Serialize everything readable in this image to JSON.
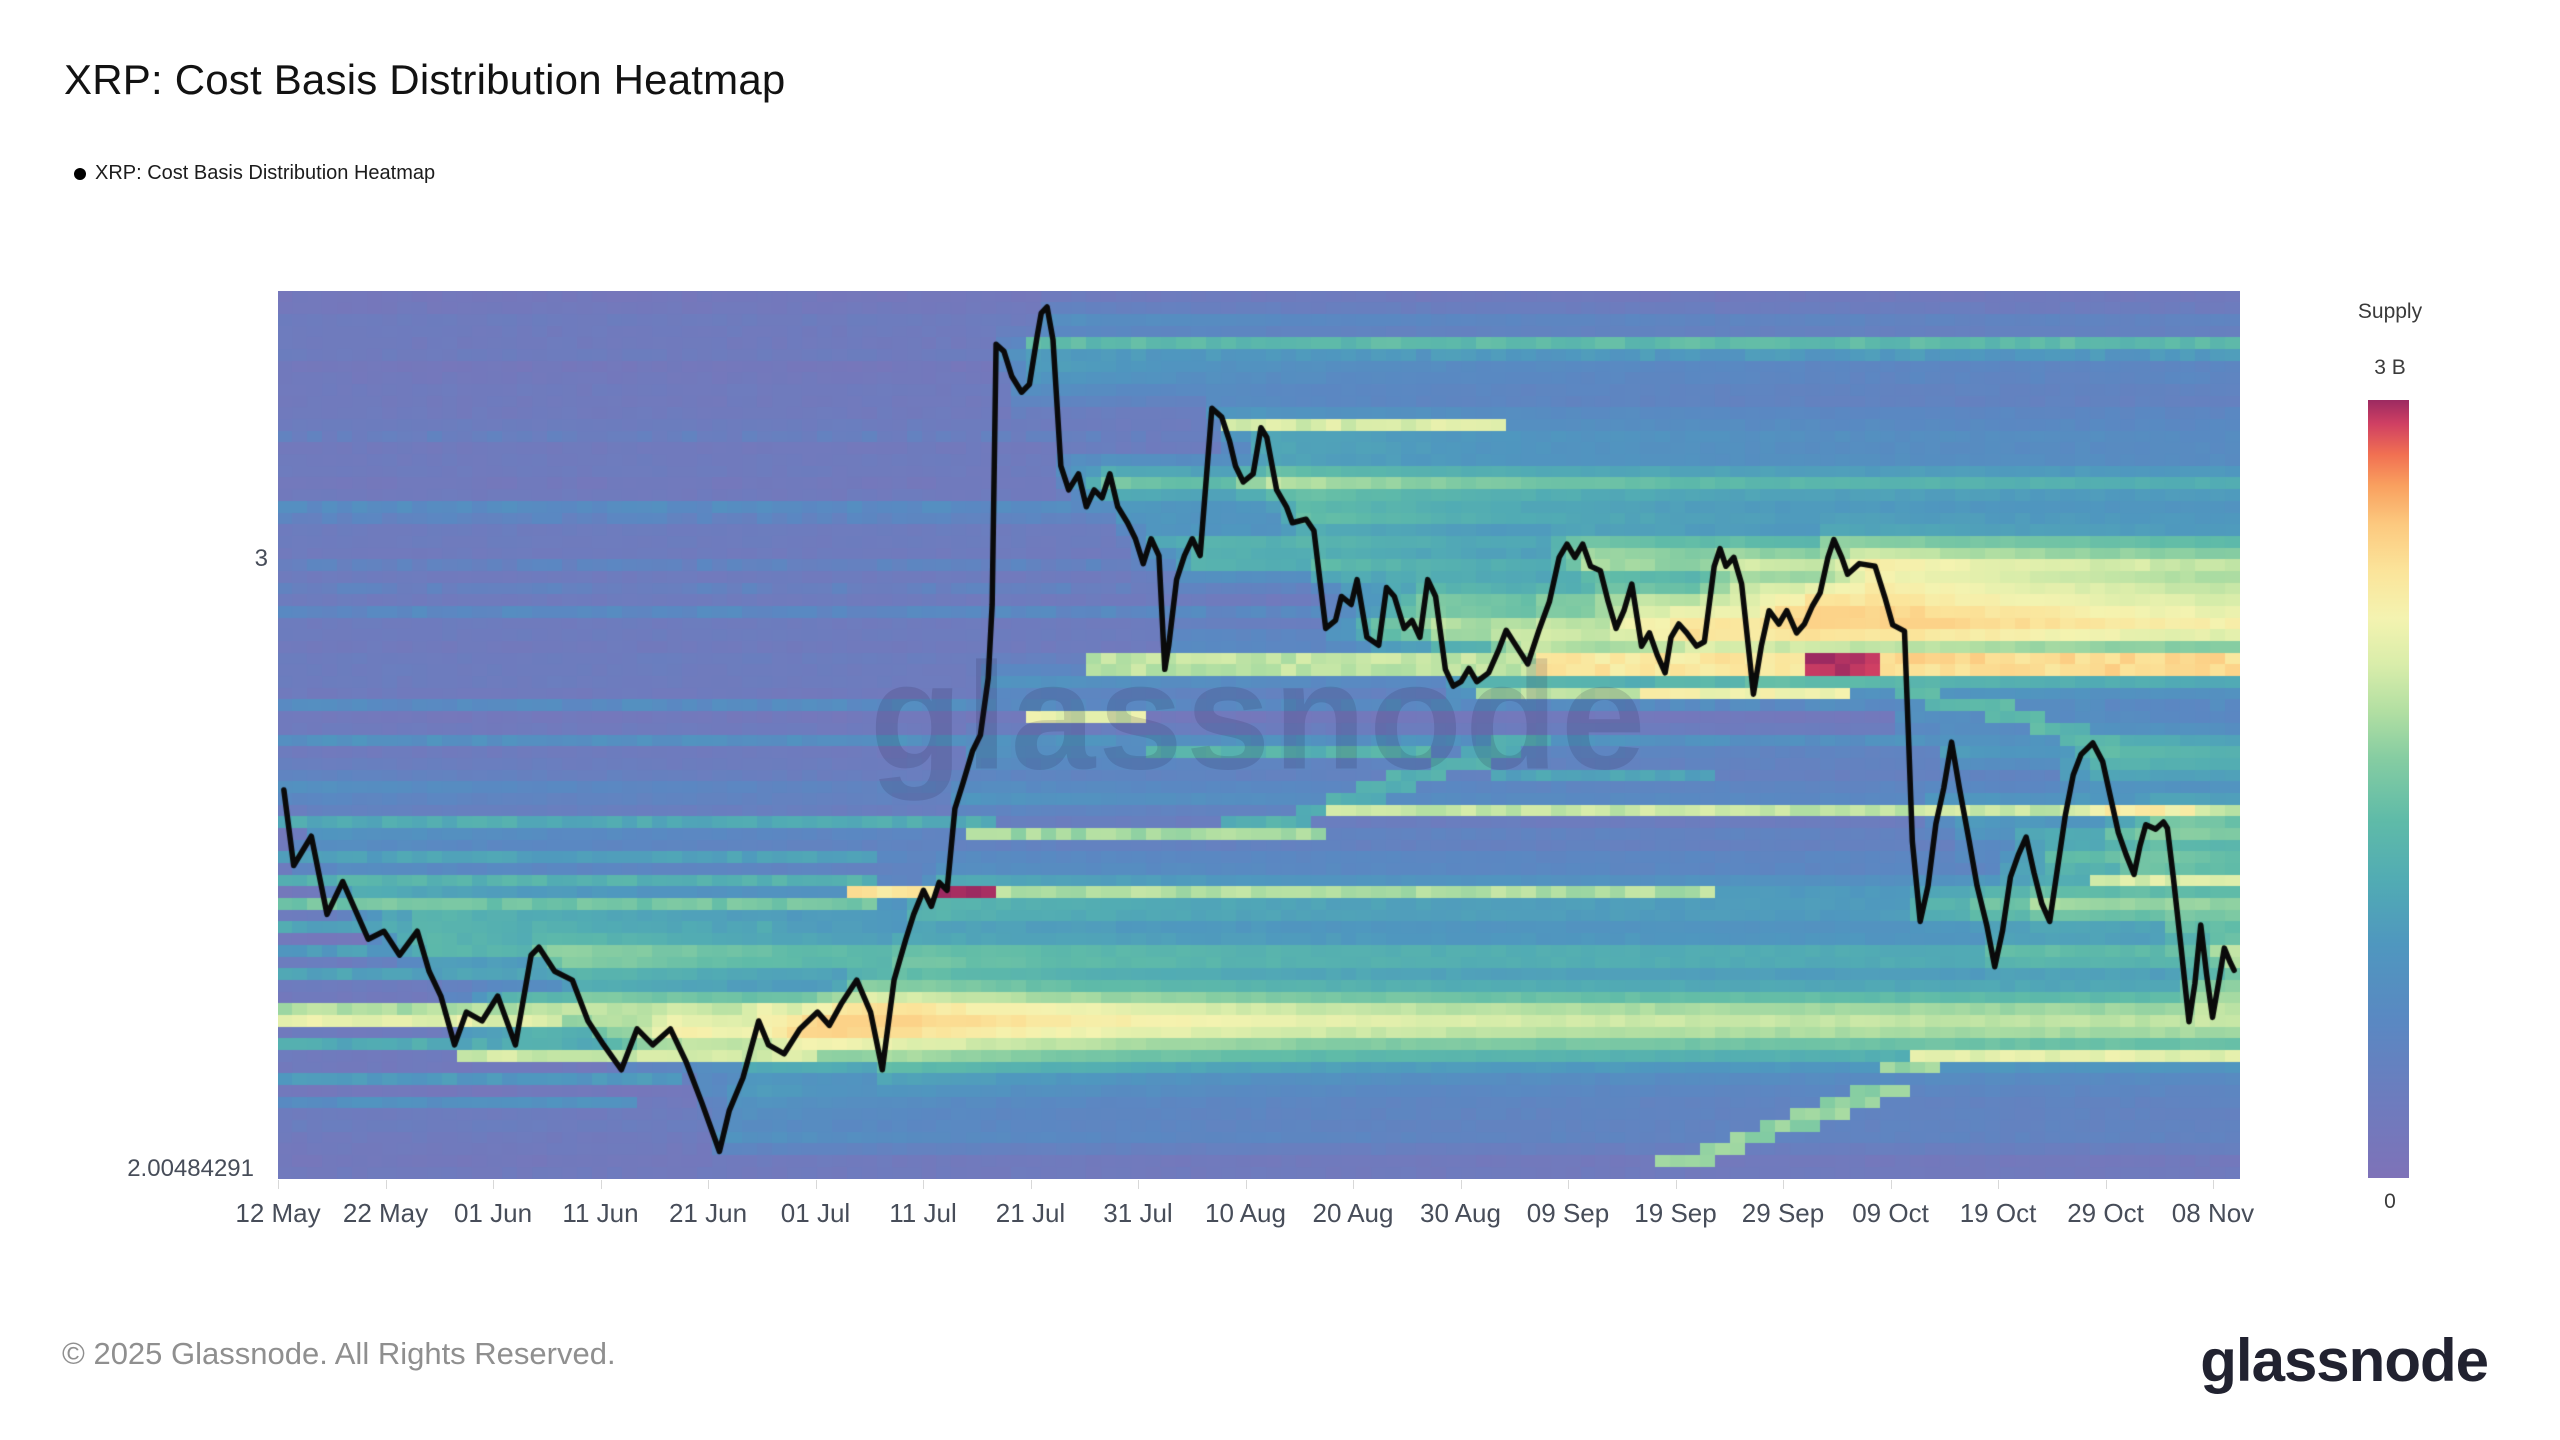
{
  "header": {
    "title": "XRP: Cost Basis Distribution Heatmap",
    "legend_label": "XRP: Cost Basis Distribution Heatmap"
  },
  "watermark": "glassnode",
  "footer": {
    "copyright": "© 2025 Glassnode. All Rights Reserved.",
    "brand": "glassnode"
  },
  "colorbar": {
    "title": "Supply",
    "max_label": "3 B",
    "min_label": "0"
  },
  "axes": {
    "y_labels": [
      {
        "text": "3",
        "yf": 0.3
      },
      {
        "text": "2.00484291",
        "yf": 0.986
      }
    ],
    "x_labels": [
      "12 May",
      "22 May",
      "01 Jun",
      "11 Jun",
      "21 Jun",
      "01 Jul",
      "11 Jul",
      "21 Jul",
      "31 Jul",
      "10 Aug",
      "20 Aug",
      "30 Aug",
      "09 Sep",
      "19 Sep",
      "29 Sep",
      "09 Oct",
      "19 Oct",
      "29 Oct",
      "08 Nov"
    ]
  },
  "chart_data": {
    "type": "heatmap",
    "title": "XRP: Cost Basis Distribution Heatmap",
    "x_range": [
      "12 May",
      "08 Nov"
    ],
    "x_tick_spacing_days": 10,
    "y_axis": {
      "labeled_price": 3,
      "labeled_price_frac": 0.3,
      "bottom_label": "2.00484291"
    },
    "supply_scale": {
      "min_label": "0",
      "max_label": "3 B"
    },
    "legend": {
      "position": "top-left",
      "entries": [
        "XRP: Cost Basis Distribution Heatmap"
      ]
    },
    "grid": {
      "cols": 131,
      "rows": 76
    },
    "colormap": [
      [
        0.0,
        "#7e72b8"
      ],
      [
        0.1,
        "#6d7cbe"
      ],
      [
        0.2,
        "#5a88c2"
      ],
      [
        0.3,
        "#4f97bf"
      ],
      [
        0.38,
        "#51abb4"
      ],
      [
        0.46,
        "#5fbba8"
      ],
      [
        0.54,
        "#86cda2"
      ],
      [
        0.6,
        "#b2dfa2"
      ],
      [
        0.66,
        "#d9edaa"
      ],
      [
        0.72,
        "#f4f3b0"
      ],
      [
        0.78,
        "#fbe49a"
      ],
      [
        0.84,
        "#fcc97f"
      ],
      [
        0.89,
        "#f9a05f"
      ],
      [
        0.93,
        "#f17052"
      ],
      [
        0.97,
        "#cf3f63"
      ],
      [
        1.0,
        "#9c2a61"
      ]
    ],
    "price_line_color": "#0a0a0a",
    "base": {
      "level": 0.045,
      "row_jitter": 0.05,
      "cell_jitter": 0.028,
      "seed": 7
    },
    "deposit": {
      "amps": [
        0.03,
        0.09,
        0.15,
        0.09,
        0.03
      ],
      "persist_floor": 0.38,
      "decay_cols": 22
    },
    "price_line": [
      [
        0.003,
        0.562
      ],
      [
        0.008,
        0.647
      ],
      [
        0.017,
        0.614
      ],
      [
        0.025,
        0.702
      ],
      [
        0.033,
        0.665
      ],
      [
        0.046,
        0.73
      ],
      [
        0.054,
        0.721
      ],
      [
        0.062,
        0.748
      ],
      [
        0.071,
        0.721
      ],
      [
        0.077,
        0.766
      ],
      [
        0.083,
        0.794
      ],
      [
        0.09,
        0.849
      ],
      [
        0.096,
        0.812
      ],
      [
        0.104,
        0.822
      ],
      [
        0.112,
        0.794
      ],
      [
        0.121,
        0.849
      ],
      [
        0.129,
        0.748
      ],
      [
        0.133,
        0.739
      ],
      [
        0.141,
        0.766
      ],
      [
        0.15,
        0.776
      ],
      [
        0.158,
        0.822
      ],
      [
        0.166,
        0.849
      ],
      [
        0.175,
        0.877
      ],
      [
        0.183,
        0.831
      ],
      [
        0.191,
        0.849
      ],
      [
        0.2,
        0.831
      ],
      [
        0.208,
        0.868
      ],
      [
        0.216,
        0.914
      ],
      [
        0.225,
        0.969
      ],
      [
        0.23,
        0.923
      ],
      [
        0.237,
        0.886
      ],
      [
        0.245,
        0.822
      ],
      [
        0.25,
        0.849
      ],
      [
        0.258,
        0.859
      ],
      [
        0.266,
        0.831
      ],
      [
        0.275,
        0.812
      ],
      [
        0.281,
        0.827
      ],
      [
        0.287,
        0.803
      ],
      [
        0.295,
        0.776
      ],
      [
        0.302,
        0.812
      ],
      [
        0.308,
        0.877
      ],
      [
        0.314,
        0.776
      ],
      [
        0.32,
        0.73
      ],
      [
        0.324,
        0.702
      ],
      [
        0.329,
        0.675
      ],
      [
        0.333,
        0.693
      ],
      [
        0.337,
        0.666
      ],
      [
        0.341,
        0.675
      ],
      [
        0.345,
        0.583
      ],
      [
        0.349,
        0.555
      ],
      [
        0.354,
        0.518
      ],
      [
        0.358,
        0.5
      ],
      [
        0.362,
        0.436
      ],
      [
        0.364,
        0.353
      ],
      [
        0.366,
        0.06
      ],
      [
        0.37,
        0.068
      ],
      [
        0.374,
        0.096
      ],
      [
        0.379,
        0.114
      ],
      [
        0.383,
        0.105
      ],
      [
        0.387,
        0.05
      ],
      [
        0.389,
        0.025
      ],
      [
        0.392,
        0.018
      ],
      [
        0.395,
        0.055
      ],
      [
        0.399,
        0.197
      ],
      [
        0.403,
        0.224
      ],
      [
        0.408,
        0.206
      ],
      [
        0.412,
        0.243
      ],
      [
        0.416,
        0.224
      ],
      [
        0.42,
        0.233
      ],
      [
        0.424,
        0.206
      ],
      [
        0.428,
        0.243
      ],
      [
        0.433,
        0.261
      ],
      [
        0.437,
        0.279
      ],
      [
        0.441,
        0.307
      ],
      [
        0.445,
        0.279
      ],
      [
        0.449,
        0.298
      ],
      [
        0.452,
        0.426
      ],
      [
        0.454,
        0.399
      ],
      [
        0.458,
        0.325
      ],
      [
        0.462,
        0.298
      ],
      [
        0.466,
        0.279
      ],
      [
        0.47,
        0.298
      ],
      [
        0.476,
        0.132
      ],
      [
        0.481,
        0.142
      ],
      [
        0.485,
        0.169
      ],
      [
        0.488,
        0.197
      ],
      [
        0.492,
        0.215
      ],
      [
        0.497,
        0.206
      ],
      [
        0.501,
        0.154
      ],
      [
        0.504,
        0.165
      ],
      [
        0.509,
        0.224
      ],
      [
        0.514,
        0.243
      ],
      [
        0.517,
        0.261
      ],
      [
        0.524,
        0.257
      ],
      [
        0.528,
        0.27
      ],
      [
        0.534,
        0.38
      ],
      [
        0.539,
        0.371
      ],
      [
        0.542,
        0.344
      ],
      [
        0.547,
        0.353
      ],
      [
        0.55,
        0.325
      ],
      [
        0.555,
        0.39
      ],
      [
        0.561,
        0.399
      ],
      [
        0.565,
        0.334
      ],
      [
        0.569,
        0.344
      ],
      [
        0.574,
        0.38
      ],
      [
        0.578,
        0.371
      ],
      [
        0.582,
        0.39
      ],
      [
        0.586,
        0.325
      ],
      [
        0.59,
        0.344
      ],
      [
        0.595,
        0.426
      ],
      [
        0.599,
        0.445
      ],
      [
        0.603,
        0.44
      ],
      [
        0.607,
        0.425
      ],
      [
        0.611,
        0.44
      ],
      [
        0.617,
        0.43
      ],
      [
        0.622,
        0.405
      ],
      [
        0.626,
        0.382
      ],
      [
        0.63,
        0.396
      ],
      [
        0.637,
        0.42
      ],
      [
        0.643,
        0.38
      ],
      [
        0.648,
        0.35
      ],
      [
        0.653,
        0.3
      ],
      [
        0.657,
        0.285
      ],
      [
        0.661,
        0.3
      ],
      [
        0.665,
        0.285
      ],
      [
        0.669,
        0.31
      ],
      [
        0.674,
        0.315
      ],
      [
        0.678,
        0.35
      ],
      [
        0.682,
        0.38
      ],
      [
        0.686,
        0.36
      ],
      [
        0.69,
        0.33
      ],
      [
        0.695,
        0.4
      ],
      [
        0.699,
        0.385
      ],
      [
        0.703,
        0.41
      ],
      [
        0.707,
        0.43
      ],
      [
        0.71,
        0.39
      ],
      [
        0.714,
        0.375
      ],
      [
        0.718,
        0.385
      ],
      [
        0.723,
        0.4
      ],
      [
        0.727,
        0.395
      ],
      [
        0.732,
        0.31
      ],
      [
        0.735,
        0.29
      ],
      [
        0.738,
        0.31
      ],
      [
        0.742,
        0.3
      ],
      [
        0.746,
        0.33
      ],
      [
        0.752,
        0.454
      ],
      [
        0.756,
        0.4
      ],
      [
        0.76,
        0.36
      ],
      [
        0.765,
        0.375
      ],
      [
        0.769,
        0.36
      ],
      [
        0.774,
        0.385
      ],
      [
        0.778,
        0.375
      ],
      [
        0.782,
        0.355
      ],
      [
        0.786,
        0.34
      ],
      [
        0.79,
        0.3
      ],
      [
        0.793,
        0.28
      ],
      [
        0.797,
        0.3
      ],
      [
        0.8,
        0.319
      ],
      [
        0.806,
        0.307
      ],
      [
        0.814,
        0.31
      ],
      [
        0.819,
        0.345
      ],
      [
        0.823,
        0.376
      ],
      [
        0.829,
        0.383
      ],
      [
        0.831,
        0.5
      ],
      [
        0.833,
        0.62
      ],
      [
        0.837,
        0.71
      ],
      [
        0.841,
        0.67
      ],
      [
        0.845,
        0.6
      ],
      [
        0.849,
        0.56
      ],
      [
        0.853,
        0.508
      ],
      [
        0.857,
        0.56
      ],
      [
        0.862,
        0.62
      ],
      [
        0.866,
        0.67
      ],
      [
        0.871,
        0.715
      ],
      [
        0.875,
        0.761
      ],
      [
        0.879,
        0.72
      ],
      [
        0.883,
        0.66
      ],
      [
        0.887,
        0.635
      ],
      [
        0.891,
        0.615
      ],
      [
        0.895,
        0.655
      ],
      [
        0.899,
        0.69
      ],
      [
        0.903,
        0.71
      ],
      [
        0.907,
        0.65
      ],
      [
        0.911,
        0.59
      ],
      [
        0.915,
        0.545
      ],
      [
        0.919,
        0.522
      ],
      [
        0.925,
        0.509
      ],
      [
        0.93,
        0.53
      ],
      [
        0.934,
        0.57
      ],
      [
        0.938,
        0.61
      ],
      [
        0.942,
        0.635
      ],
      [
        0.946,
        0.657
      ],
      [
        0.949,
        0.625
      ],
      [
        0.952,
        0.601
      ],
      [
        0.957,
        0.606
      ],
      [
        0.961,
        0.598
      ],
      [
        0.963,
        0.605
      ],
      [
        0.966,
        0.66
      ],
      [
        0.97,
        0.74
      ],
      [
        0.974,
        0.823
      ],
      [
        0.977,
        0.78
      ],
      [
        0.98,
        0.714
      ],
      [
        0.983,
        0.77
      ],
      [
        0.986,
        0.818
      ],
      [
        0.989,
        0.78
      ],
      [
        0.992,
        0.74
      ],
      [
        0.995,
        0.756
      ],
      [
        0.997,
        0.765
      ]
    ],
    "bands": [
      {
        "y": 0.047,
        "x0": 0.392,
        "x1": 1.0,
        "v": 0.45,
        "h": 1
      },
      {
        "y": 0.066,
        "x0": 0.39,
        "x1": 1.0,
        "v": 0.3,
        "h": 1
      },
      {
        "y": 0.095,
        "x0": 0.47,
        "x1": 1.0,
        "v": 0.17,
        "h": 1
      },
      {
        "y": 0.15,
        "x0": 0.488,
        "x1": 0.617,
        "v": 0.66,
        "h": 1
      },
      {
        "y": 0.165,
        "x0": 0.0,
        "x1": 1.0,
        "v": 0.13,
        "h": 1
      },
      {
        "y": 0.241,
        "x0": 0.0,
        "x1": 1.0,
        "v": 0.22,
        "h": 1
      },
      {
        "y": 0.258,
        "x0": 0.0,
        "x1": 1.0,
        "v": 0.17,
        "h": 1
      },
      {
        "y": 0.3,
        "x0": 0.0,
        "x1": 1.0,
        "v": 0.16,
        "h": 1
      },
      {
        "y": 0.33,
        "x0": 0.0,
        "x1": 1.0,
        "v": 0.14,
        "h": 1
      },
      {
        "y": 0.313,
        "x0": 0.63,
        "x1": 0.812,
        "v": 0.38,
        "h": 1
      },
      {
        "y": 0.313,
        "x0": 0.812,
        "x1": 0.953,
        "v": 0.64,
        "h": 1
      },
      {
        "y": 0.355,
        "x0": 0.0,
        "x1": 1.0,
        "v": 0.2,
        "h": 1
      },
      {
        "y": 0.412,
        "x0": 0.423,
        "x1": 0.648,
        "v": 0.62,
        "h": 2
      },
      {
        "y": 0.412,
        "x0": 0.648,
        "x1": 0.787,
        "v": 0.76,
        "h": 2
      },
      {
        "y": 0.412,
        "x0": 0.787,
        "x1": 0.81,
        "v": 0.985,
        "h": 2
      },
      {
        "y": 0.412,
        "x0": 0.81,
        "x1": 1.0,
        "v": 0.8,
        "h": 2
      },
      {
        "y": 0.447,
        "x0": 0.62,
        "x1": 0.705,
        "v": 0.6,
        "h": 1
      },
      {
        "y": 0.447,
        "x0": 0.705,
        "x1": 0.8,
        "v": 0.72,
        "h": 1
      },
      {
        "y": 0.47,
        "x0": 0.0,
        "x1": 1.0,
        "v": 0.22,
        "h": 1
      },
      {
        "y": 0.475,
        "x0": 0.392,
        "x1": 0.432,
        "v": 0.68,
        "h": 1
      },
      {
        "y": 0.505,
        "x0": 0.0,
        "x1": 1.0,
        "v": 0.26,
        "h": 1
      },
      {
        "y": 0.517,
        "x0": 0.452,
        "x1": 0.582,
        "v": 0.42,
        "h": 1
      },
      {
        "y": 0.553,
        "x0": 0.63,
        "x1": 0.73,
        "v": 0.35,
        "h": 1
      },
      {
        "y": 0.587,
        "x0": 0.545,
        "x1": 0.938,
        "v": 0.63,
        "h": 1
      },
      {
        "y": 0.587,
        "x0": 0.938,
        "x1": 0.974,
        "v": 0.74,
        "h": 1
      },
      {
        "y": 0.587,
        "x0": 0.974,
        "x1": 1.0,
        "v": 0.63,
        "h": 1
      },
      {
        "y": 0.6,
        "x0": 0.0,
        "x1": 0.36,
        "v": 0.38,
        "h": 1
      },
      {
        "y": 0.615,
        "x0": 0.357,
        "x1": 0.53,
        "v": 0.58,
        "h": 1
      },
      {
        "y": 0.635,
        "x0": 0.0,
        "x1": 0.3,
        "v": 0.34,
        "h": 1
      },
      {
        "y": 0.66,
        "x0": 0.0,
        "x1": 0.295,
        "v": 0.42,
        "h": 1
      },
      {
        "y": 0.672,
        "x0": 0.935,
        "x1": 1.0,
        "v": 0.66,
        "h": 1
      },
      {
        "y": 0.68,
        "x0": 0.295,
        "x1": 0.345,
        "v": 0.78,
        "h": 1
      },
      {
        "y": 0.68,
        "x0": 0.345,
        "x1": 0.358,
        "v": 0.99,
        "h": 1
      },
      {
        "y": 0.68,
        "x0": 0.358,
        "x1": 0.73,
        "v": 0.6,
        "h": 1
      },
      {
        "y": 0.695,
        "x0": 0.0,
        "x1": 0.3,
        "v": 0.5,
        "h": 1
      },
      {
        "y": 0.72,
        "x0": 0.0,
        "x1": 0.25,
        "v": 0.36,
        "h": 1
      },
      {
        "y": 0.745,
        "x0": 0.0,
        "x1": 0.22,
        "v": 0.32,
        "h": 1
      },
      {
        "y": 0.775,
        "x0": 0.0,
        "x1": 0.3,
        "v": 0.35,
        "h": 1
      },
      {
        "y": 0.808,
        "x0": 0.0,
        "x1": 0.245,
        "v": 0.6,
        "h": 1
      },
      {
        "y": 0.808,
        "x0": 0.245,
        "x1": 0.29,
        "v": 0.68,
        "h": 1
      },
      {
        "y": 0.808,
        "x0": 0.29,
        "x1": 0.325,
        "v": 0.74,
        "h": 1
      },
      {
        "y": 0.808,
        "x0": 0.325,
        "x1": 0.72,
        "v": 0.46,
        "h": 1
      },
      {
        "y": 0.829,
        "x0": 0.0,
        "x1": 0.135,
        "v": 0.68,
        "h": 1
      },
      {
        "y": 0.829,
        "x0": 0.135,
        "x1": 0.41,
        "v": 0.55,
        "h": 1
      },
      {
        "y": 0.838,
        "x0": 0.875,
        "x1": 1.0,
        "v": 0.4,
        "h": 1
      },
      {
        "y": 0.85,
        "x0": 0.0,
        "x1": 0.27,
        "v": 0.38,
        "h": 1
      },
      {
        "y": 0.868,
        "x0": 0.843,
        "x1": 1.0,
        "v": 0.68,
        "h": 1
      },
      {
        "y": 0.872,
        "x0": 0.093,
        "x1": 0.268,
        "v": 0.65,
        "h": 1
      },
      {
        "y": 0.89,
        "x0": 0.0,
        "x1": 0.2,
        "v": 0.3,
        "h": 1
      },
      {
        "y": 0.92,
        "x0": 0.0,
        "x1": 0.17,
        "v": 0.25,
        "h": 1
      }
    ],
    "diagonals": [
      {
        "from": [
          0.49,
          0.605
        ],
        "to": [
          0.628,
          0.513
        ],
        "v": 0.4,
        "steps": 9
      },
      {
        "from": [
          0.715,
          0.985
        ],
        "to": [
          0.843,
          0.872
        ],
        "v": 0.56,
        "steps": 9
      },
      {
        "from": [
          0.813,
          0.441
        ],
        "to": [
          0.92,
          0.5
        ],
        "v": 0.44,
        "steps": 7
      }
    ]
  }
}
